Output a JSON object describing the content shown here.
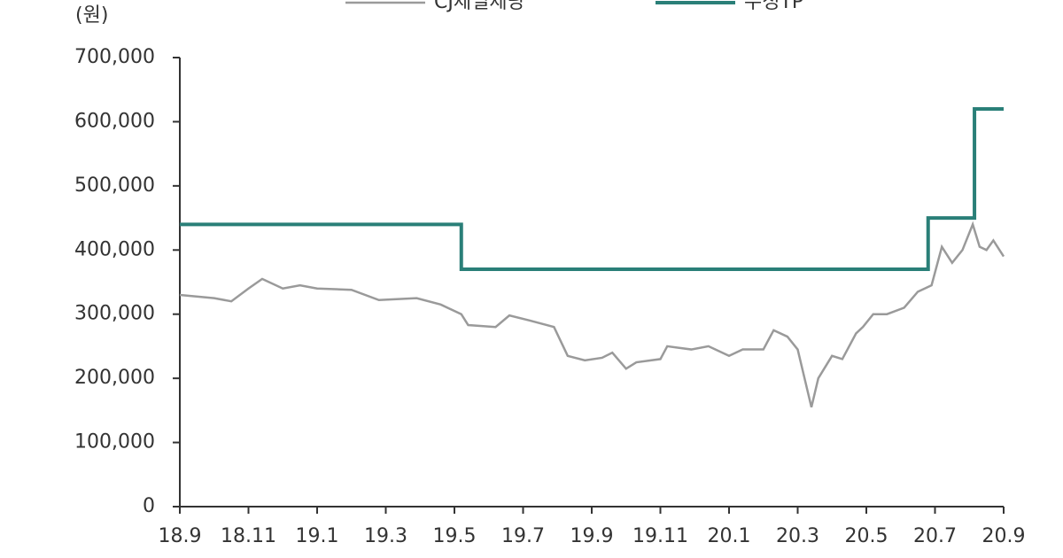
{
  "chart_data": {
    "type": "line",
    "y_label": "(원)",
    "xlim": [
      0,
      24
    ],
    "xticks": [
      {
        "value": 0,
        "label": "18.9"
      },
      {
        "value": 2,
        "label": "18.11"
      },
      {
        "value": 4,
        "label": "19.1"
      },
      {
        "value": 6,
        "label": "19.3"
      },
      {
        "value": 8,
        "label": "19.5"
      },
      {
        "value": 10,
        "label": "19.7"
      },
      {
        "value": 12,
        "label": "19.9"
      },
      {
        "value": 14,
        "label": "19.11"
      },
      {
        "value": 16,
        "label": "20.1"
      },
      {
        "value": 18,
        "label": "20.3"
      },
      {
        "value": 20,
        "label": "20.5"
      },
      {
        "value": 22,
        "label": "20.7"
      },
      {
        "value": 24,
        "label": "20.9"
      }
    ],
    "ylim": [
      0,
      700000
    ],
    "yticks": [
      0,
      {
        "value": 100000,
        "label": "100,000"
      },
      {
        "value": 200000,
        "label": "200,000"
      },
      {
        "value": 300000,
        "label": "300,000"
      },
      {
        "value": 400000,
        "label": "400,000"
      },
      {
        "value": 500000,
        "label": "500,000"
      },
      {
        "value": 600000,
        "label": "600,000"
      },
      {
        "value": 700000,
        "label": "700,000"
      }
    ],
    "series": [
      {
        "name": "CJ제일제당",
        "color": "#9a9a9a",
        "step": false,
        "x": [
          0,
          1,
          1.5,
          2,
          2.4,
          3,
          3.5,
          4,
          5,
          5.8,
          6.9,
          7.6,
          8.2,
          8.4,
          9.2,
          9.6,
          10.2,
          10.9,
          11.3,
          11.8,
          12.3,
          12.6,
          13,
          13.3,
          14,
          14.2,
          14.9,
          15.4,
          16,
          16.4,
          17,
          17.3,
          17.7,
          18,
          18.2,
          18.4,
          18.6,
          19,
          19.3,
          19.7,
          19.9,
          20.2,
          20.6,
          21.1,
          21.5,
          21.9,
          22.2,
          22.5,
          22.8,
          23.1,
          23.3,
          23.5,
          23.7,
          24
        ],
        "values": [
          330000,
          325000,
          320000,
          340000,
          355000,
          340000,
          345000,
          340000,
          338000,
          322000,
          325000,
          315000,
          300000,
          283000,
          280000,
          298000,
          290000,
          280000,
          235000,
          228000,
          232000,
          240000,
          215000,
          225000,
          230000,
          250000,
          245000,
          250000,
          235000,
          245000,
          245000,
          275000,
          265000,
          245000,
          200000,
          155000,
          200000,
          235000,
          230000,
          270000,
          280000,
          300000,
          300000,
          310000,
          335000,
          345000,
          405000,
          380000,
          400000,
          440000,
          405000,
          400000,
          415000,
          390000
        ]
      },
      {
        "name": "수정TP",
        "color": "#2a7f78",
        "step": true,
        "x": [
          0,
          8.2,
          21.8,
          23.15,
          24
        ],
        "values": [
          440000,
          370000,
          450000,
          620000,
          620000
        ]
      }
    ]
  }
}
